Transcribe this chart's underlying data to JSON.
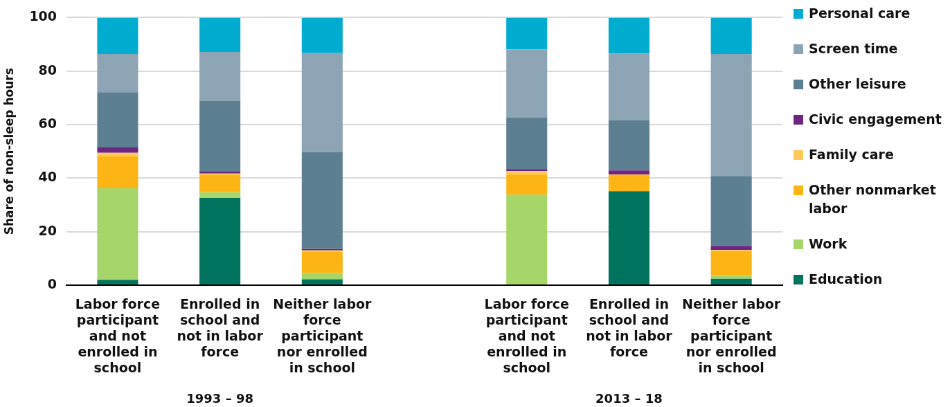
{
  "chart_data": {
    "type": "bar",
    "stacked": true,
    "ylabel": "Share of non-sleep hours",
    "categories": [
      "Labor force participant and not enrolled in school",
      "Enrolled in school and not in labor force",
      "Neither labor force participant nor enrolled in school",
      null,
      "Labor force participant and not enrolled in school",
      "Enrolled in school and not in labor force",
      "Neither labor force participant nor enrolled in school"
    ],
    "series": [
      {
        "name": "Education",
        "color": "#00735f",
        "values": [
          2.0,
          32.6,
          2.2,
          null,
          0,
          35.1,
          2.4
        ]
      },
      {
        "name": "Work",
        "color": "#a6d66a",
        "values": [
          34.2,
          2.1,
          2.3,
          null,
          33.8,
          0,
          1.1
        ]
      },
      {
        "name": "Other nonmarket labor",
        "color": "#fdb515",
        "values": [
          11.9,
          6.6,
          7.9,
          null,
          7.5,
          6.0,
          9.3
        ]
      },
      {
        "name": "Family care",
        "color": "#fec95a",
        "values": [
          1.4,
          0.4,
          0.6,
          null,
          1.4,
          0.3,
          0.3
        ]
      },
      {
        "name": "Civic engagement",
        "color": "#6e2582",
        "values": [
          2.0,
          0.7,
          0.5,
          null,
          0.7,
          1.5,
          1.6
        ]
      },
      {
        "name": "Other leisure",
        "color": "#5d7f92",
        "values": [
          20.6,
          26.4,
          36.2,
          null,
          19.3,
          18.8,
          26.1
        ]
      },
      {
        "name": "Screen time",
        "color": "#8ca4b3",
        "values": [
          14.3,
          18.4,
          37.0,
          null,
          25.4,
          24.9,
          45.6
        ]
      },
      {
        "name": "Personal care",
        "color": "#00abd0",
        "values": [
          13.6,
          12.8,
          13.3,
          null,
          11.9,
          13.4,
          13.6
        ]
      }
    ],
    "ylim": [
      0,
      100
    ],
    "yticks": [
      0,
      20,
      40,
      60,
      80,
      100
    ],
    "grid": "y",
    "legend": "right",
    "annotations": [
      "1993 – 98",
      "2013 – 18"
    ]
  }
}
